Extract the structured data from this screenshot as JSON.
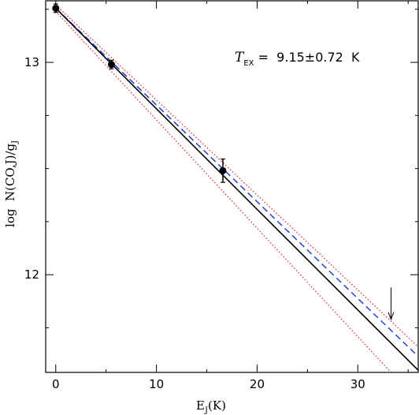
{
  "chart_data": {
    "type": "scatter",
    "title": "",
    "xlabel": {
      "main": "E",
      "sub": "J",
      "unit": "(K)"
    },
    "ylabel": {
      "main": "log  N(CO,J)/g",
      "sub": "J"
    },
    "xlim": [
      -1.0,
      36.0
    ],
    "ylim": [
      11.54,
      13.29
    ],
    "x_ticks": [
      0,
      10,
      20,
      30
    ],
    "x_tick_labels": [
      "0",
      "10",
      "20",
      "30"
    ],
    "x_minor_step": 5,
    "y_ticks": [
      12,
      13
    ],
    "y_tick_labels": [
      "12",
      "13"
    ],
    "y_minor_step": 0.25,
    "grid": false,
    "points": [
      {
        "x": 0.0,
        "y": 13.255,
        "err": 0.02
      },
      {
        "x": 5.53,
        "y": 12.99,
        "err": 0.02
      },
      {
        "x": 16.6,
        "y": 12.49,
        "err": 0.055
      }
    ],
    "fit_line": {
      "x": [
        0,
        36
      ],
      "y": [
        13.255,
        11.55
      ],
      "color": "#000000"
    },
    "blue_dashed_line": {
      "x": [
        0,
        36
      ],
      "y": [
        13.255,
        11.615
      ],
      "color": "#1f3fd0"
    },
    "red_dotted_upper": {
      "x": [
        0,
        36
      ],
      "y": [
        13.27,
        11.66
      ],
      "color": "#e02020"
    },
    "red_dotted_lower": {
      "x": [
        0,
        33.3
      ],
      "y": [
        13.24,
        11.54
      ],
      "color": "#e02020"
    },
    "arrow_marker": {
      "x": 33.3,
      "y_top": 11.94,
      "y_bottom": 11.79
    },
    "annotation": {
      "symbol": "T",
      "symbol_sub": "EX",
      "text": " =  9.15±0.72  K"
    }
  }
}
